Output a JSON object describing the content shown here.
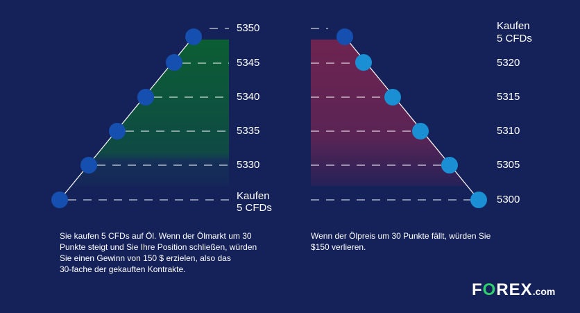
{
  "left": {
    "levels": [
      5350,
      5345,
      5340,
      5335,
      5330
    ],
    "marker": [
      "Kaufen",
      "5 CFDs"
    ],
    "caption": [
      "Sie kaufen 5 CFDs auf Öl. Wenn der Ölmarkt um 30",
      "Punkte steigt und Sie Ihre Position schließen, würden",
      "Sie einen Gewinn von 150 $ erzielen, also das",
      "30-fache der gekauften Kontrakte."
    ]
  },
  "right": {
    "marker": [
      "Kaufen",
      "5 CFDs"
    ],
    "levels": [
      5320,
      5315,
      5310,
      5305,
      5300
    ],
    "caption": [
      "Wenn der Ölpreis um 30 Punkte fällt, würden Sie",
      "$150 verlieren."
    ]
  },
  "logo": {
    "parts": [
      "F",
      "O",
      "REX"
    ],
    "suffix": ".com"
  }
}
